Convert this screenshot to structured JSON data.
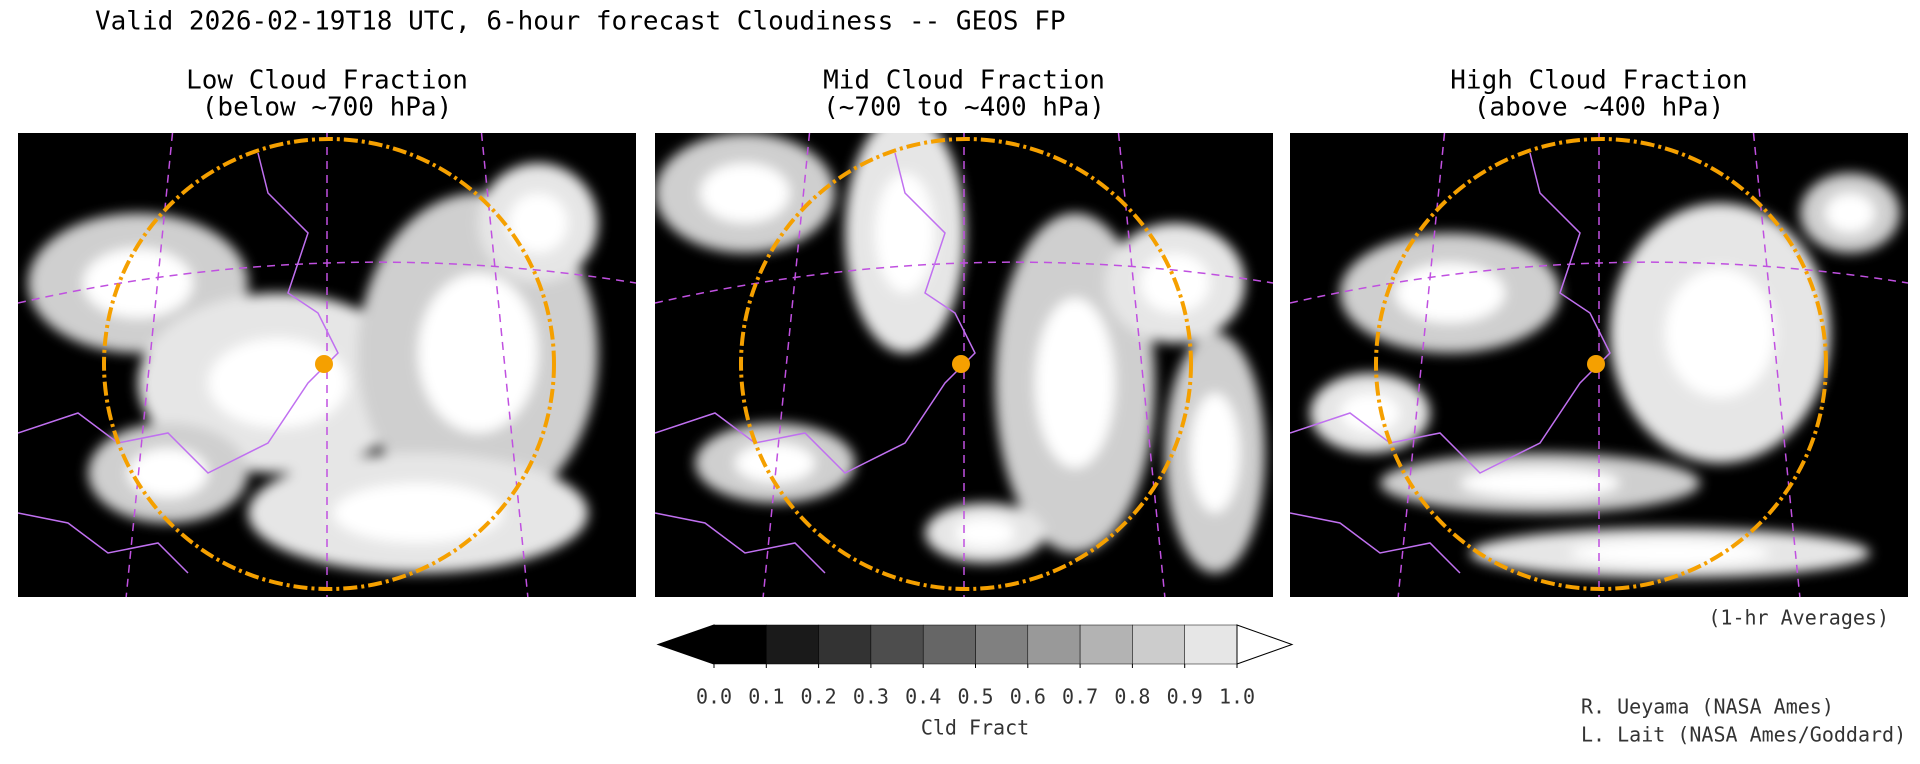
{
  "title": "Valid 2026-02-19T18 UTC, 6-hour forecast Cloudiness -- GEOS FP",
  "panels": [
    {
      "title": "Low Cloud Fraction",
      "subtitle": "(below ~700 hPa)"
    },
    {
      "title": "Mid Cloud Fraction",
      "subtitle": "(~700 to ~400 hPa)"
    },
    {
      "title": "High Cloud Fraction",
      "subtitle": "(above ~400 hPa)"
    }
  ],
  "note": "(1-hr Averages)",
  "colorbar": {
    "label": "Cld Fract",
    "colors": [
      "#000000",
      "#1a1a1a",
      "#333333",
      "#4d4d4d",
      "#666666",
      "#808080",
      "#999999",
      "#b3b3b3",
      "#cccccc",
      "#e6e6e6"
    ],
    "under_color": "#000000",
    "over_color": "#ffffff",
    "ticks": [
      {
        "value": 0,
        "label": "0.0"
      },
      {
        "value": 0.1,
        "label": "0.1"
      },
      {
        "value": 0.2,
        "label": "0.2"
      },
      {
        "value": 0.3,
        "label": "0.3"
      },
      {
        "value": 0.4,
        "label": "0.4"
      },
      {
        "value": 0.5,
        "label": "0.5"
      },
      {
        "value": 0.6,
        "label": "0.6"
      },
      {
        "value": 0.7,
        "label": "0.7"
      },
      {
        "value": 0.8,
        "label": "0.8"
      },
      {
        "value": 0.9,
        "label": "0.9"
      },
      {
        "value": 1,
        "label": "1.0"
      }
    ],
    "lim": [
      0,
      1
    ]
  },
  "credits": [
    "R. Ueyama (NASA Ames)",
    "L. Lait (NASA Ames/Goddard)"
  ]
}
